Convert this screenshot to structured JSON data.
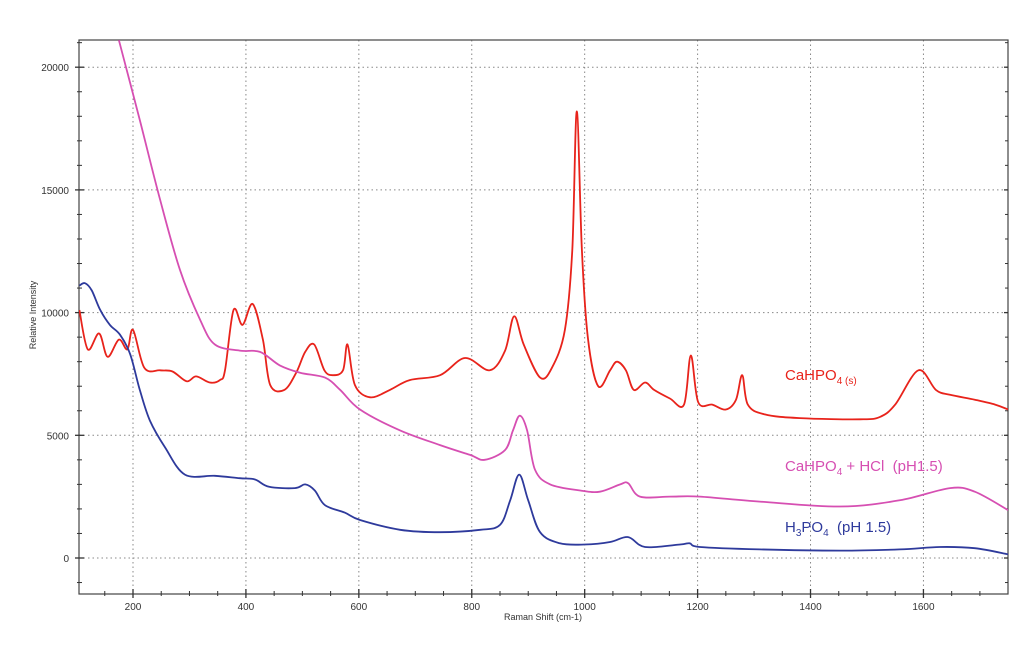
{
  "chart_data": {
    "type": "line",
    "title": "",
    "xlabel": "Raman Shift (cm-1)",
    "ylabel": "Relative Intensity",
    "xlim": [
      105,
      1750
    ],
    "ylim": [
      -1450,
      21100
    ],
    "x_ticks": [
      200,
      400,
      600,
      800,
      1000,
      1200,
      1400,
      1600
    ],
    "y_ticks": [
      0,
      5000,
      10000,
      15000,
      20000
    ],
    "grid": true,
    "legend_position": "inline-right",
    "series": [
      {
        "name": "CaHPO4(s)",
        "label_main": "CaHPO",
        "label_sub1": "4 (s)",
        "label_rest": "",
        "color": "#e8231b",
        "label_pos": [
          1320,
          7400
        ],
        "x": [
          105,
          120,
          140,
          155,
          175,
          190,
          200,
          220,
          248,
          270,
          295,
          312,
          336,
          354,
          363,
          378,
          394,
          412,
          430,
          443,
          468,
          489,
          505,
          521,
          539,
          554,
          572,
          580,
          593,
          620,
          655,
          690,
          744,
          788,
          832,
          859,
          875,
          892,
          921,
          942,
          965,
          978,
          986,
          995,
          1006,
          1024,
          1045,
          1057,
          1073,
          1087,
          1107,
          1123,
          1151,
          1176,
          1188,
          1201,
          1226,
          1250,
          1268,
          1279,
          1289,
          1319,
          1381,
          1488,
          1523,
          1550,
          1591,
          1622,
          1647,
          1691,
          1727,
          1750
        ],
        "y": [
          10100,
          8500,
          9150,
          8200,
          8900,
          8500,
          9300,
          7750,
          7650,
          7600,
          7200,
          7400,
          7150,
          7250,
          7650,
          10100,
          9500,
          10350,
          8900,
          7050,
          6850,
          7550,
          8400,
          8700,
          7650,
          7450,
          7650,
          8700,
          7050,
          6550,
          6850,
          7250,
          7450,
          8150,
          7650,
          8450,
          9850,
          8700,
          7350,
          7750,
          9300,
          12550,
          18200,
          12550,
          8900,
          7000,
          7650,
          8000,
          7650,
          6850,
          7150,
          6850,
          6500,
          6250,
          8250,
          6350,
          6250,
          6050,
          6450,
          7450,
          6250,
          5850,
          5700,
          5650,
          5750,
          6250,
          7650,
          6850,
          6650,
          6450,
          6250,
          6050
        ]
      },
      {
        "name": "CaHPO4 + HCl (pH1.5)",
        "label_main": "CaHPO",
        "label_sub1": "4",
        "label_rest": " + HCl  (pH1.5)",
        "color": "#d64fb2",
        "label_pos": [
          1320,
          3620
        ],
        "x": [
          175,
          212,
          248,
          283,
          319,
          345,
          389,
          425,
          460,
          496,
          540,
          567,
          602,
          673,
          744,
          797,
          823,
          859,
          873,
          885,
          898,
          912,
          939,
          992,
          1027,
          1063,
          1077,
          1098,
          1151,
          1204,
          1310,
          1452,
          1558,
          1647,
          1691,
          1750
        ],
        "y": [
          21100,
          17850,
          14600,
          11750,
          9700,
          8700,
          8450,
          8400,
          7850,
          7550,
          7350,
          6850,
          6050,
          5200,
          4600,
          4200,
          4000,
          4400,
          5200,
          5800,
          5200,
          3600,
          3000,
          2750,
          2700,
          3000,
          3050,
          2500,
          2500,
          2500,
          2300,
          2100,
          2350,
          2850,
          2700,
          1950
        ]
      },
      {
        "name": "H3PO4 (pH 1.5)",
        "label_main": "H",
        "label_sub1": "3",
        "label_rest": "PO",
        "label_sub2": "4",
        "label_tail": "  (pH 1.5)",
        "color": "#2e3a9c",
        "label_pos": [
          1320,
          1000
        ],
        "x": [
          105,
          115,
          127,
          142,
          159,
          177,
          195,
          212,
          230,
          257,
          292,
          345,
          389,
          416,
          441,
          487,
          505,
          522,
          540,
          575,
          602,
          673,
          744,
          815,
          850,
          868,
          884,
          900,
          921,
          956,
          1000,
          1045,
          1077,
          1107,
          1169,
          1186,
          1204,
          1310,
          1452,
          1558,
          1629,
          1691,
          1750
        ],
        "y": [
          11100,
          11200,
          10900,
          10100,
          9500,
          9100,
          8300,
          6850,
          5600,
          4500,
          3400,
          3350,
          3250,
          3200,
          2900,
          2850,
          3000,
          2750,
          2150,
          1850,
          1550,
          1150,
          1050,
          1150,
          1350,
          2350,
          3400,
          2350,
          1050,
          600,
          550,
          650,
          850,
          450,
          550,
          600,
          450,
          350,
          300,
          350,
          450,
          400,
          150
        ]
      }
    ]
  },
  "axes": {
    "x_title": "Raman Shift (cm-1)",
    "y_title": "Relative Intensity"
  },
  "legend": {
    "red_main": "CaHPO",
    "red_sub": "4 (s)",
    "pink_main": "CaHPO",
    "pink_sub": "4",
    "pink_rest": " + HCl  (pH1.5)",
    "blue_h": "H",
    "blue_sub3": "3",
    "blue_po": "PO",
    "blue_sub4": "4",
    "blue_rest": "  (pH 1.5)"
  }
}
